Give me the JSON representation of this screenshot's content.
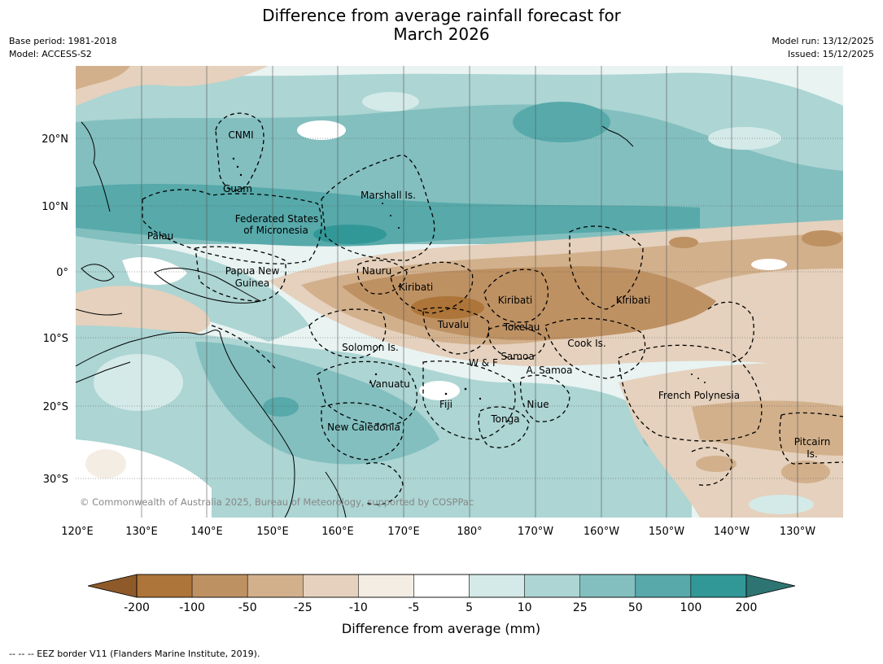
{
  "title": {
    "line1": "Difference from average rainfall forecast for",
    "line2": "March 2026"
  },
  "meta_left": {
    "base_period": "Base period: 1981-2018",
    "model": "Model: ACCESS-S2"
  },
  "meta_right": {
    "model_run": "Model run: 13/12/2025",
    "issued": "Issued: 15/12/2025"
  },
  "map": {
    "lat_labels": [
      "20°N",
      "10°N",
      "0°",
      "10°S",
      "20°S",
      "30°S"
    ],
    "lon_labels": [
      "120°E",
      "130°E",
      "140°E",
      "150°E",
      "160°E",
      "170°E",
      "180°",
      "170°W",
      "160°W",
      "150°W",
      "140°W",
      "130°W"
    ],
    "regions": [
      {
        "name": "CNMI"
      },
      {
        "name": "Guam"
      },
      {
        "name": "Marshall Is."
      },
      {
        "name": "Federated States"
      },
      {
        "name": "of Micronesia"
      },
      {
        "name": "Palau"
      },
      {
        "name": "Papua New"
      },
      {
        "name": "Guinea"
      },
      {
        "name": "Nauru"
      },
      {
        "name": "Kiribati"
      },
      {
        "name": "Kiribati"
      },
      {
        "name": "Kiribati"
      },
      {
        "name": "Tuvalu"
      },
      {
        "name": "Tokelau"
      },
      {
        "name": "Solomon Is."
      },
      {
        "name": "W & F"
      },
      {
        "name": "Samoa"
      },
      {
        "name": "A. Samoa"
      },
      {
        "name": "Cook Is."
      },
      {
        "name": "Vanuatu"
      },
      {
        "name": "Fiji"
      },
      {
        "name": "Niue"
      },
      {
        "name": "Tonga"
      },
      {
        "name": "New Caledonia"
      },
      {
        "name": "French Polynesia"
      },
      {
        "name": "Pitcairn"
      },
      {
        "name": "Is."
      }
    ],
    "copyright": "© Commonwealth of Australia 2025, Bureau of Meteorology, supported by COSPPac"
  },
  "colorbar": {
    "ticks": [
      "-200",
      "-100",
      "-50",
      "-25",
      "-10",
      "-5",
      "5",
      "10",
      "25",
      "50",
      "100",
      "200"
    ],
    "colors": {
      "under": "#8f5a2a",
      "bins": [
        "#ad7539",
        "#be9163",
        "#d2b08c",
        "#e5d1bd",
        "#f3ede4",
        "#ffffff",
        "#d4eae8",
        "#acd5d3",
        "#83bfbf",
        "#57a9aa",
        "#329797"
      ],
      "over": "#2e7472"
    },
    "label": "Difference from average (mm)"
  },
  "footnote": "--  --  -- EEZ border V11 (Flanders Marine Institute, 2019)."
}
